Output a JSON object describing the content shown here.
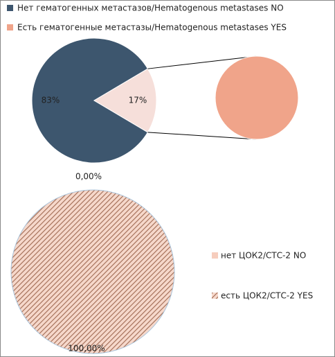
{
  "chart_data": [
    {
      "type": "pie-of-pie",
      "categories": [
        "Нет гематогенных метастазов/Hematogenous metastases  NO",
        "Есть гематогенные метастазы/Hematogenous metastases  YES"
      ],
      "values": [
        83,
        17
      ],
      "value_labels": [
        "83%",
        "17%"
      ],
      "colors": [
        "#3d566e",
        "#f0a48a"
      ],
      "split_color": "#f6dfda"
    },
    {
      "type": "pie",
      "categories": [
        "нет ЦОК2/СТС-2 NO",
        "есть ЦОК2/СТС-2 YES"
      ],
      "values": [
        0,
        100
      ],
      "value_labels": [
        "0,00%",
        "100,00%"
      ],
      "colors": [
        "#f6cdbd",
        "#a06a52"
      ],
      "hatch": [
        false,
        true
      ]
    }
  ]
}
